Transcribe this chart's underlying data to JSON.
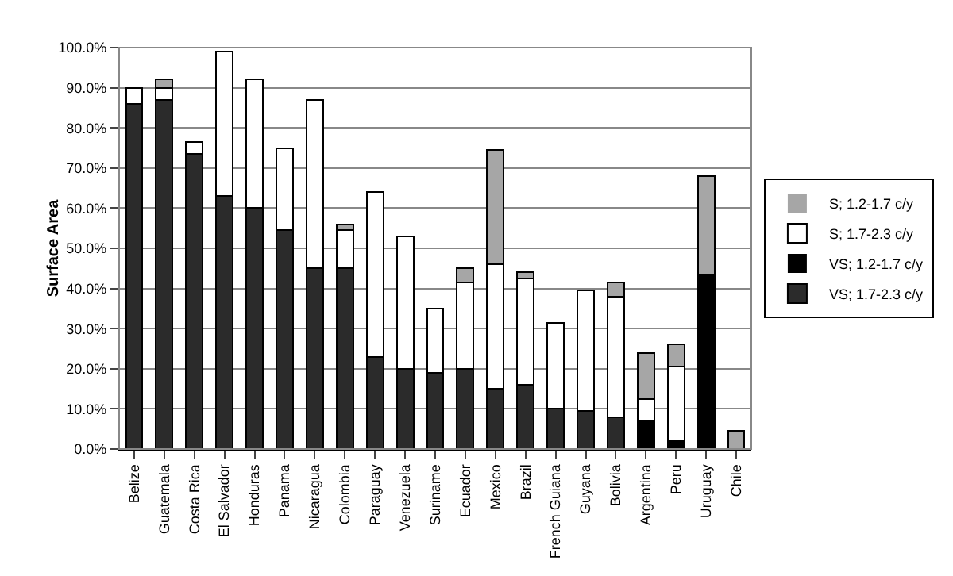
{
  "chart_data": {
    "type": "bar",
    "stacked": true,
    "ylabel": "Surface Area",
    "categories": [
      "Belize",
      "Guatemala",
      "Costa Rica",
      "El Salvador",
      "Honduras",
      "Panama",
      "Nicaragua",
      "Colombia",
      "Paraguay",
      "Venezuela",
      "Suriname",
      "Ecuador",
      "Mexico",
      "Brazil",
      "French Guiana",
      "Guyana",
      "Bolivia",
      "Argentina",
      "Peru",
      "Uruguay",
      "Chile"
    ],
    "series": [
      {
        "name": "VS; 1.7-2.3 c/y",
        "color": "#2b2b2b",
        "values": [
          86,
          87,
          73.5,
          63,
          60,
          54.5,
          45,
          45,
          23,
          20,
          19,
          20,
          15,
          16,
          10,
          9.5,
          8,
          0,
          0,
          0,
          0
        ]
      },
      {
        "name": "VS; 1.2-1.7 c/y",
        "color": "#000000",
        "values": [
          0,
          0,
          0,
          0,
          0,
          0,
          0,
          0,
          0,
          0,
          0,
          0,
          0,
          0,
          0,
          0,
          0,
          7,
          2,
          43.5,
          0
        ]
      },
      {
        "name": "S; 1.7-2.3 c/y",
        "color": "#ffffff",
        "values": [
          4,
          3,
          3,
          36,
          32,
          20.5,
          42,
          9.5,
          41,
          33,
          16,
          21.5,
          31,
          26.5,
          21.5,
          30,
          30,
          5.5,
          18.5,
          0,
          0
        ]
      },
      {
        "name": "S; 1.2-1.7 c/y",
        "color": "#a6a6a6",
        "values": [
          0,
          2,
          0,
          0,
          0,
          0,
          0,
          1.5,
          0,
          0,
          0,
          3.5,
          28.5,
          1.5,
          0,
          0,
          3.5,
          11.5,
          5.5,
          24.5,
          4.5
        ]
      }
    ],
    "ylim": [
      0,
      100
    ],
    "yticks": [
      {
        "value": 0,
        "label": "0.0%"
      },
      {
        "value": 10,
        "label": "10.0%"
      },
      {
        "value": 20,
        "label": "20.0%"
      },
      {
        "value": 30,
        "label": "30.0%"
      },
      {
        "value": 40,
        "label": "40.0%"
      },
      {
        "value": 50,
        "label": "50.0%"
      },
      {
        "value": 60,
        "label": "60.0%"
      },
      {
        "value": 70,
        "label": "70.0%"
      },
      {
        "value": 80,
        "label": "80.0%"
      },
      {
        "value": 90,
        "label": "90.0%"
      },
      {
        "value": 100,
        "label": "100.0%"
      }
    ],
    "grid": "y",
    "legend": "right"
  }
}
